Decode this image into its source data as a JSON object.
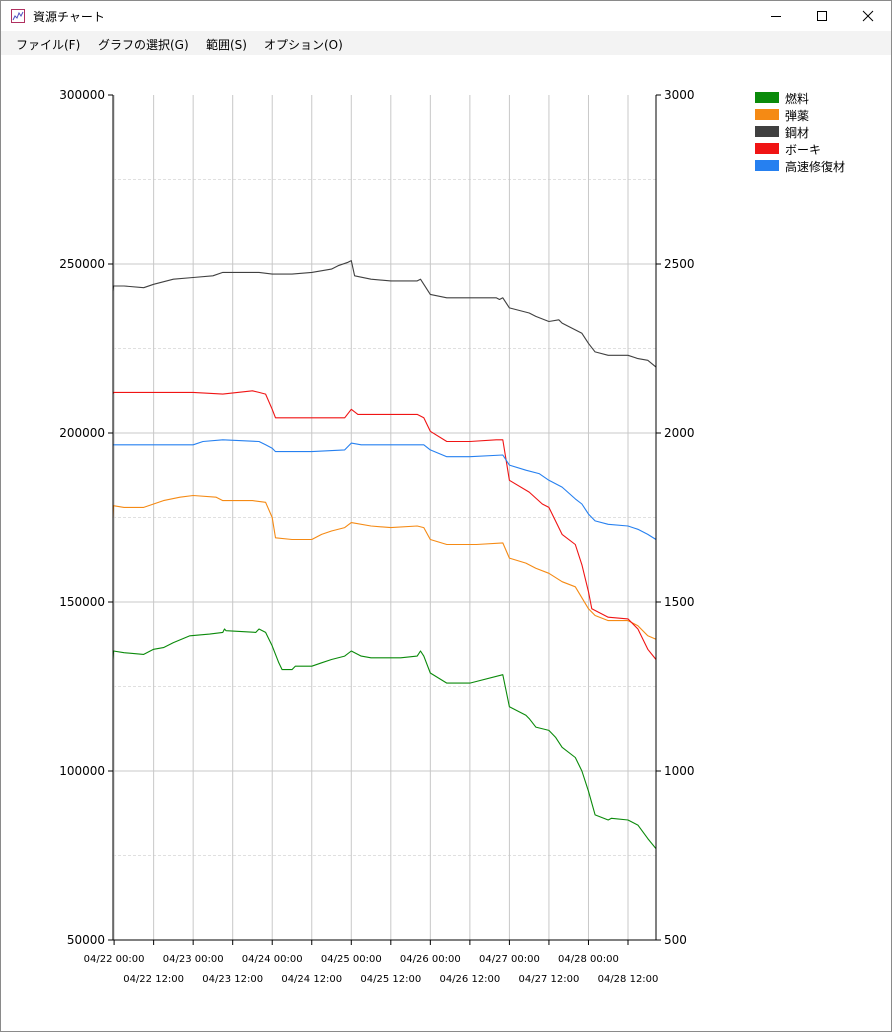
{
  "window": {
    "title": "資源チャート"
  },
  "menu": [
    {
      "label": "ファイル(F)"
    },
    {
      "label": "グラフの選択(G)"
    },
    {
      "label": "範囲(S)"
    },
    {
      "label": "オプション(O)"
    }
  ],
  "colors": {
    "燃料": "#0a8a0a",
    "弾薬": "#f58a14",
    "鋼材": "#404040",
    "ボーキ": "#f01414",
    "高速修復材": "#2680f0"
  },
  "chart_data": {
    "type": "line",
    "title": "",
    "grid": true,
    "legend_position": "top-right",
    "y_left": {
      "range": [
        50000,
        300000
      ],
      "ticks": [
        "300000",
        "250000",
        "200000",
        "150000",
        "100000",
        "50000"
      ]
    },
    "y_right": {
      "range": [
        500,
        3000
      ],
      "ticks": [
        "3000",
        "2500",
        "2000",
        "1500",
        "1000",
        "500"
      ]
    },
    "x_axis": {
      "range": [
        "04/21 23:40",
        "04/28 20:30"
      ],
      "ticks_row1": [
        "04/22 00:00",
        "04/23 00:00",
        "04/24 00:00",
        "04/25 00:00",
        "04/26 00:00",
        "04/27 00:00",
        "04/28 00:00"
      ],
      "ticks_row2": [
        "04/22 12:00",
        "04/23 12:00",
        "04/24 12:00",
        "04/25 12:00",
        "04/26 12:00",
        "04/27 12:00",
        "04/28 12:00"
      ]
    },
    "series": [
      {
        "name": "燃料",
        "axis": "left",
        "points": [
          [
            "04/21 23:40",
            133000
          ],
          [
            "04/21 23:50",
            135500
          ],
          [
            "04/22 03:00",
            135000
          ],
          [
            "04/22 09:00",
            134500
          ],
          [
            "04/22 12:00",
            136000
          ],
          [
            "04/22 15:00",
            136500
          ],
          [
            "04/22 18:00",
            138000
          ],
          [
            "04/22 23:00",
            140000
          ],
          [
            "04/23 05:00",
            140500
          ],
          [
            "04/23 09:00",
            141000
          ],
          [
            "04/23 09:30",
            142000
          ],
          [
            "04/23 10:00",
            141500
          ],
          [
            "04/23 19:00",
            141000
          ],
          [
            "04/23 20:00",
            142000
          ],
          [
            "04/23 22:00",
            141000
          ],
          [
            "04/24 00:00",
            137000
          ],
          [
            "04/24 02:00",
            132000
          ],
          [
            "04/24 03:00",
            130000
          ],
          [
            "04/24 06:00",
            130000
          ],
          [
            "04/24 07:00",
            131000
          ],
          [
            "04/24 12:00",
            131000
          ],
          [
            "04/24 15:00",
            132000
          ],
          [
            "04/24 18:00",
            133000
          ],
          [
            "04/24 22:00",
            134000
          ],
          [
            "04/25 00:00",
            135500
          ],
          [
            "04/25 03:00",
            134000
          ],
          [
            "04/25 06:00",
            133500
          ],
          [
            "04/25 15:00",
            133500
          ],
          [
            "04/25 20:00",
            134000
          ],
          [
            "04/25 21:00",
            135500
          ],
          [
            "04/25 22:00",
            134000
          ],
          [
            "04/26 00:00",
            129000
          ],
          [
            "04/26 05:00",
            126000
          ],
          [
            "04/26 12:00",
            126000
          ],
          [
            "04/26 22:00",
            128500
          ],
          [
            "04/27 00:00",
            119000
          ],
          [
            "04/27 05:00",
            116500
          ],
          [
            "04/27 06:00",
            115500
          ],
          [
            "04/27 08:00",
            113000
          ],
          [
            "04/27 12:00",
            112000
          ],
          [
            "04/27 14:00",
            110000
          ],
          [
            "04/27 16:00",
            107000
          ],
          [
            "04/27 20:00",
            104000
          ],
          [
            "04/27 22:00",
            100000
          ],
          [
            "04/28 00:00",
            94000
          ],
          [
            "04/28 02:00",
            87000
          ],
          [
            "04/28 06:00",
            85500
          ],
          [
            "04/28 07:00",
            86000
          ],
          [
            "04/28 12:00",
            85500
          ],
          [
            "04/28 15:00",
            84000
          ],
          [
            "04/28 18:00",
            80000
          ],
          [
            "04/28 20:30",
            77000
          ]
        ]
      },
      {
        "name": "弾薬",
        "axis": "left",
        "points": [
          [
            "04/21 23:40",
            175000
          ],
          [
            "04/21 23:50",
            178500
          ],
          [
            "04/22 03:00",
            178000
          ],
          [
            "04/22 09:00",
            178000
          ],
          [
            "04/22 12:00",
            179000
          ],
          [
            "04/22 15:00",
            180000
          ],
          [
            "04/22 20:00",
            181000
          ],
          [
            "04/23 00:00",
            181500
          ],
          [
            "04/23 07:00",
            181000
          ],
          [
            "04/23 09:00",
            180000
          ],
          [
            "04/23 18:00",
            180000
          ],
          [
            "04/23 22:00",
            179500
          ],
          [
            "04/24 00:00",
            175000
          ],
          [
            "04/24 01:00",
            169000
          ],
          [
            "04/24 06:00",
            168500
          ],
          [
            "04/24 12:00",
            168500
          ],
          [
            "04/24 15:00",
            170000
          ],
          [
            "04/24 18:00",
            171000
          ],
          [
            "04/24 22:00",
            172000
          ],
          [
            "04/25 00:00",
            173500
          ],
          [
            "04/25 06:00",
            172500
          ],
          [
            "04/25 12:00",
            172000
          ],
          [
            "04/25 20:00",
            172500
          ],
          [
            "04/25 22:00",
            172000
          ],
          [
            "04/26 00:00",
            168500
          ],
          [
            "04/26 05:00",
            167000
          ],
          [
            "04/26 14:00",
            167000
          ],
          [
            "04/26 22:00",
            167500
          ],
          [
            "04/27 00:00",
            163000
          ],
          [
            "04/27 05:00",
            161500
          ],
          [
            "04/27 08:00",
            160000
          ],
          [
            "04/27 12:00",
            158500
          ],
          [
            "04/27 16:00",
            156000
          ],
          [
            "04/27 20:00",
            154500
          ],
          [
            "04/28 00:00",
            148000
          ],
          [
            "04/28 02:00",
            146000
          ],
          [
            "04/28 06:00",
            144500
          ],
          [
            "04/28 12:00",
            144500
          ],
          [
            "04/28 15:00",
            143000
          ],
          [
            "04/28 18:00",
            140000
          ],
          [
            "04/28 20:30",
            139000
          ]
        ]
      },
      {
        "name": "鋼材",
        "axis": "left",
        "points": [
          [
            "04/21 23:40",
            242000
          ],
          [
            "04/21 23:50",
            243500
          ],
          [
            "04/22 03:00",
            243500
          ],
          [
            "04/22 09:00",
            243000
          ],
          [
            "04/22 12:00",
            244000
          ],
          [
            "04/22 18:00",
            245500
          ],
          [
            "04/23 00:00",
            246000
          ],
          [
            "04/23 06:00",
            246500
          ],
          [
            "04/23 09:00",
            247500
          ],
          [
            "04/23 20:00",
            247500
          ],
          [
            "04/24 00:00",
            247000
          ],
          [
            "04/24 06:00",
            247000
          ],
          [
            "04/24 12:00",
            247500
          ],
          [
            "04/24 18:00",
            248500
          ],
          [
            "04/24 20:00",
            249500
          ],
          [
            "04/24 23:00",
            250500
          ],
          [
            "04/25 00:00",
            251000
          ],
          [
            "04/25 01:00",
            246500
          ],
          [
            "04/25 06:00",
            245500
          ],
          [
            "04/25 12:00",
            245000
          ],
          [
            "04/25 20:00",
            245000
          ],
          [
            "04/25 21:00",
            245500
          ],
          [
            "04/25 22:00",
            244000
          ],
          [
            "04/26 00:00",
            241000
          ],
          [
            "04/26 05:00",
            240000
          ],
          [
            "04/26 12:00",
            240000
          ],
          [
            "04/26 20:00",
            240000
          ],
          [
            "04/26 21:00",
            239500
          ],
          [
            "04/26 22:00",
            240000
          ],
          [
            "04/27 00:00",
            237000
          ],
          [
            "04/27 06:00",
            235500
          ],
          [
            "04/27 08:00",
            234500
          ],
          [
            "04/27 12:00",
            233000
          ],
          [
            "04/27 15:00",
            233500
          ],
          [
            "04/27 16:00",
            232500
          ],
          [
            "04/27 20:00",
            230500
          ],
          [
            "04/27 22:00",
            229500
          ],
          [
            "04/28 00:00",
            226500
          ],
          [
            "04/28 02:00",
            224000
          ],
          [
            "04/28 06:00",
            223000
          ],
          [
            "04/28 12:00",
            223000
          ],
          [
            "04/28 15:00",
            222000
          ],
          [
            "04/28 18:00",
            221500
          ],
          [
            "04/28 20:30",
            219500
          ]
        ]
      },
      {
        "name": "ボーキ",
        "axis": "left",
        "points": [
          [
            "04/21 23:40",
            211500
          ],
          [
            "04/21 23:50",
            212000
          ],
          [
            "04/22 12:00",
            212000
          ],
          [
            "04/23 00:00",
            212000
          ],
          [
            "04/23 09:00",
            211500
          ],
          [
            "04/23 18:00",
            212500
          ],
          [
            "04/23 20:00",
            212000
          ],
          [
            "04/23 22:00",
            211500
          ],
          [
            "04/24 00:00",
            207000
          ],
          [
            "04/24 01:00",
            204500
          ],
          [
            "04/24 12:00",
            204500
          ],
          [
            "04/24 22:00",
            204500
          ],
          [
            "04/25 00:00",
            207000
          ],
          [
            "04/25 02:00",
            205500
          ],
          [
            "04/25 12:00",
            205500
          ],
          [
            "04/25 20:00",
            205500
          ],
          [
            "04/25 22:00",
            204500
          ],
          [
            "04/26 00:00",
            200500
          ],
          [
            "04/26 05:00",
            197500
          ],
          [
            "04/26 12:00",
            197500
          ],
          [
            "04/26 20:00",
            198000
          ],
          [
            "04/26 22:00",
            198000
          ],
          [
            "04/27 00:00",
            186000
          ],
          [
            "04/27 06:00",
            182500
          ],
          [
            "04/27 10:00",
            179000
          ],
          [
            "04/27 12:00",
            178000
          ],
          [
            "04/27 14:00",
            174000
          ],
          [
            "04/27 16:00",
            170000
          ],
          [
            "04/27 20:00",
            167000
          ],
          [
            "04/27 22:00",
            161000
          ],
          [
            "04/28 00:00",
            153000
          ],
          [
            "04/28 01:00",
            148000
          ],
          [
            "04/28 06:00",
            145500
          ],
          [
            "04/28 12:00",
            145000
          ],
          [
            "04/28 15:00",
            142000
          ],
          [
            "04/28 18:00",
            136000
          ],
          [
            "04/28 20:30",
            133000
          ]
        ]
      },
      {
        "name": "高速修復材",
        "axis": "right",
        "points": [
          [
            "04/21 23:40",
            1965
          ],
          [
            "04/21 23:50",
            1965
          ],
          [
            "04/22 12:00",
            1965
          ],
          [
            "04/23 00:00",
            1965
          ],
          [
            "04/23 03:00",
            1975
          ],
          [
            "04/23 09:00",
            1980
          ],
          [
            "04/23 20:00",
            1975
          ],
          [
            "04/23 22:00",
            1965
          ],
          [
            "04/24 00:00",
            1955
          ],
          [
            "04/24 01:00",
            1945
          ],
          [
            "04/24 12:00",
            1945
          ],
          [
            "04/24 22:00",
            1950
          ],
          [
            "04/25 00:00",
            1970
          ],
          [
            "04/25 03:00",
            1965
          ],
          [
            "04/25 12:00",
            1965
          ],
          [
            "04/25 22:00",
            1965
          ],
          [
            "04/26 00:00",
            1950
          ],
          [
            "04/26 05:00",
            1930
          ],
          [
            "04/26 12:00",
            1930
          ],
          [
            "04/26 22:00",
            1935
          ],
          [
            "04/27 00:00",
            1905
          ],
          [
            "04/27 05:00",
            1890
          ],
          [
            "04/27 09:00",
            1880
          ],
          [
            "04/27 12:00",
            1860
          ],
          [
            "04/27 16:00",
            1840
          ],
          [
            "04/27 20:00",
            1805
          ],
          [
            "04/27 22:00",
            1790
          ],
          [
            "04/28 00:00",
            1760
          ],
          [
            "04/28 02:00",
            1740
          ],
          [
            "04/28 06:00",
            1730
          ],
          [
            "04/28 12:00",
            1725
          ],
          [
            "04/28 15:00",
            1715
          ],
          [
            "04/28 18:00",
            1700
          ],
          [
            "04/28 20:30",
            1685
          ]
        ]
      }
    ]
  }
}
